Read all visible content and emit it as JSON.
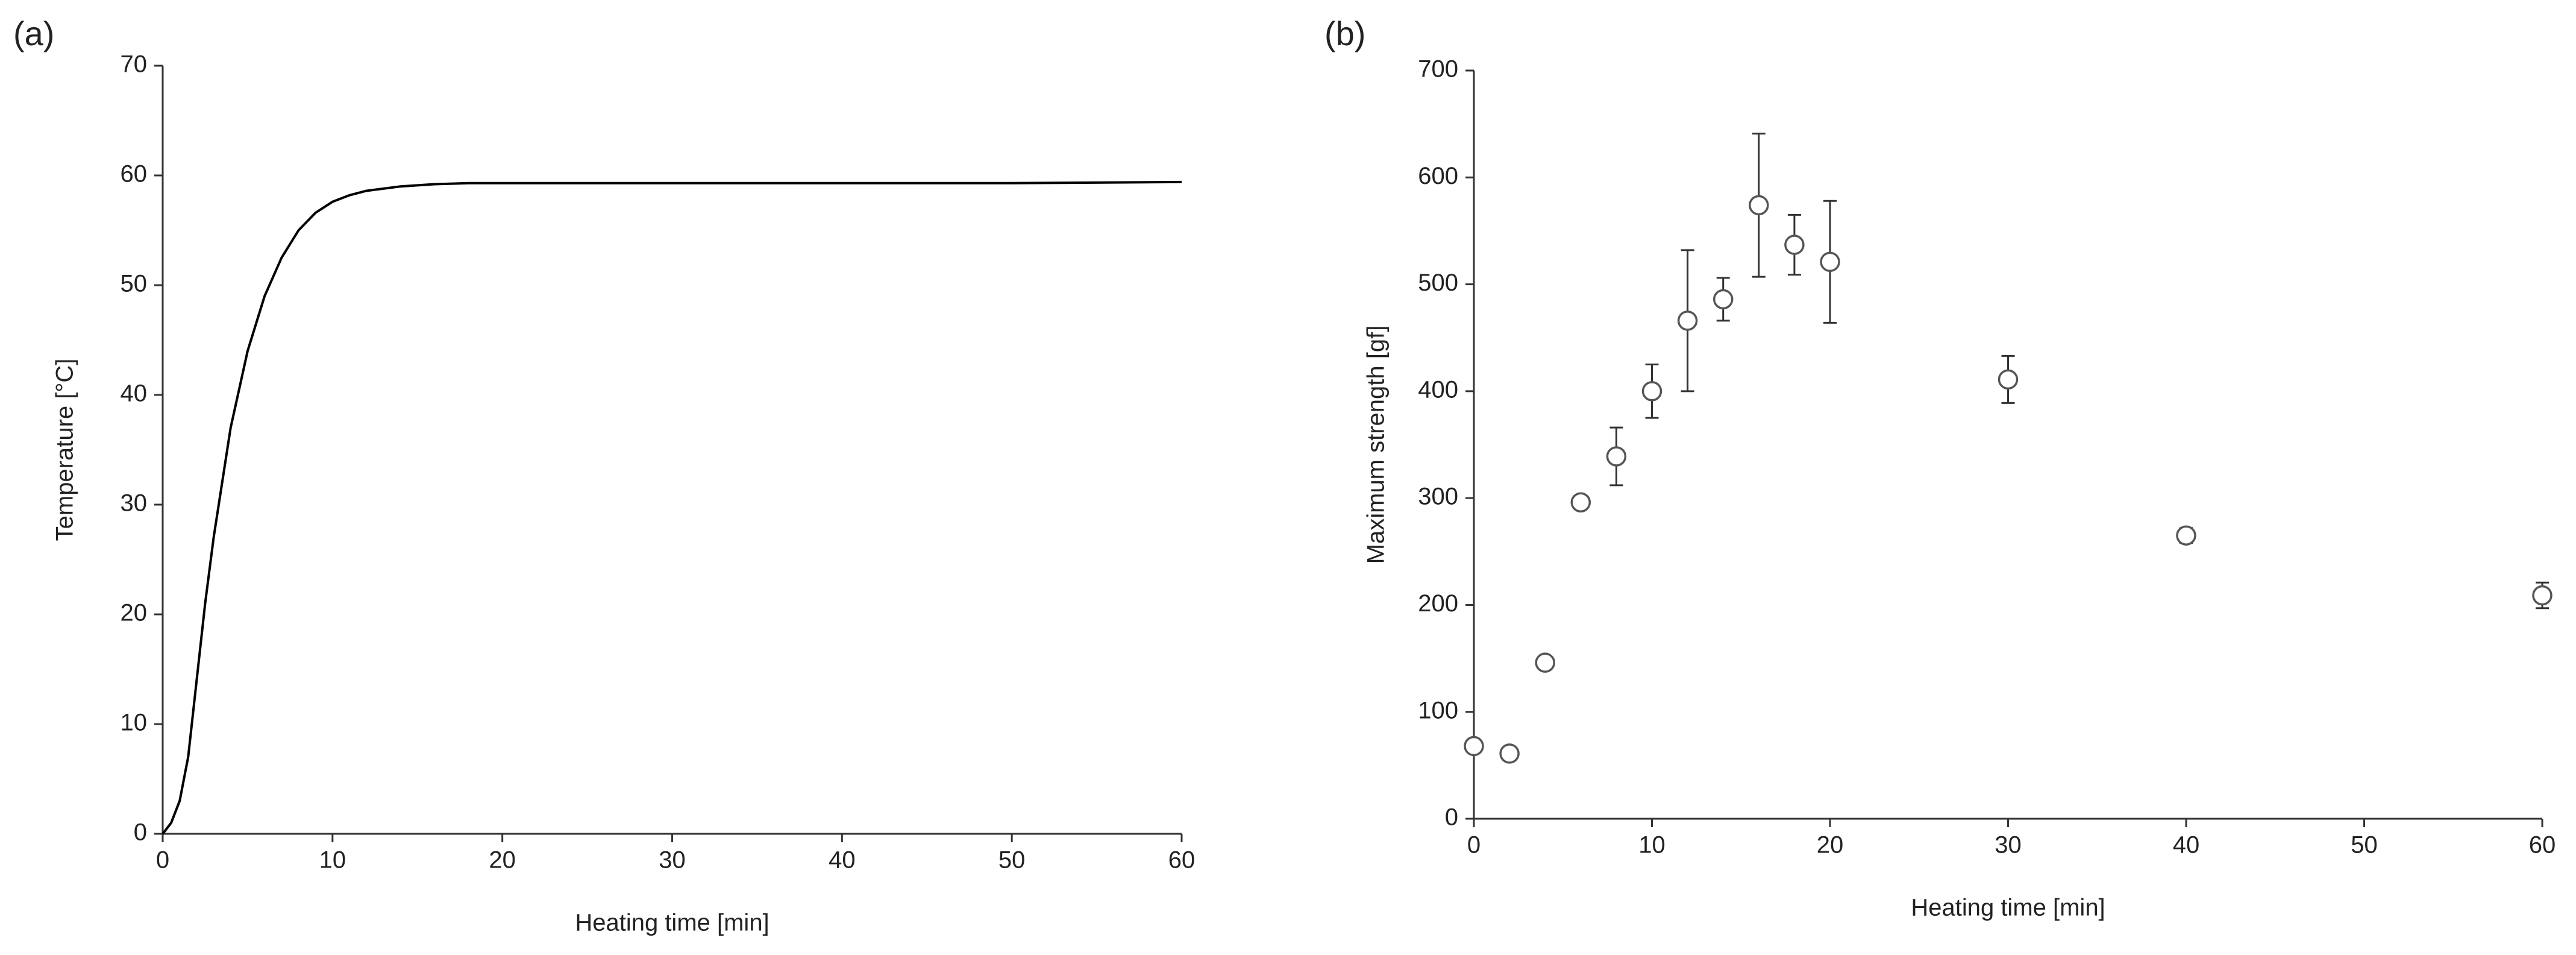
{
  "chart_data": [
    {
      "type": "line",
      "panel": "(a)",
      "xlabel": "Heating time [min]",
      "ylabel": "Temperature [°C]",
      "x": [
        0,
        0.5,
        1,
        1.5,
        2,
        2.5,
        3,
        4,
        5,
        6,
        7,
        8,
        9,
        10,
        11,
        12,
        13,
        14,
        16,
        18,
        20,
        25,
        30,
        40,
        50,
        60
      ],
      "values": [
        0,
        1,
        3,
        7,
        14,
        21,
        27,
        37,
        44,
        49,
        52.5,
        55,
        56.6,
        57.6,
        58.2,
        58.6,
        58.8,
        59,
        59.2,
        59.3,
        59.3,
        59.3,
        59.3,
        59.3,
        59.3,
        59.4
      ],
      "color": "#000000",
      "xlim": [
        0,
        60
      ],
      "xticks": [
        0,
        10,
        20,
        30,
        40,
        50,
        60
      ],
      "ylim": [
        0,
        70
      ],
      "yticks": [
        0,
        10,
        20,
        30,
        40,
        50,
        60,
        70
      ]
    },
    {
      "type": "scatter",
      "panel": "(b)",
      "xlabel": "Heating time [min]",
      "ylabel": "Maximum strength [gf]",
      "x": [
        0,
        2,
        4,
        6,
        8,
        10,
        12,
        14,
        16,
        18,
        20,
        30,
        40,
        60
      ],
      "values": [
        68,
        61,
        146,
        296,
        339,
        400,
        466,
        486,
        574,
        537,
        521,
        411,
        265,
        209
      ],
      "errors": [
        3,
        4,
        3,
        3,
        27,
        25,
        66,
        20,
        67,
        28,
        57,
        22,
        7,
        12
      ],
      "color": "#555555",
      "xlim": [
        0,
        60
      ],
      "xticks": [
        0,
        10,
        20,
        30,
        40,
        50,
        60
      ],
      "ylim": [
        0,
        700
      ],
      "yticks": [
        0,
        100,
        200,
        300,
        400,
        500,
        600,
        700
      ]
    }
  ]
}
